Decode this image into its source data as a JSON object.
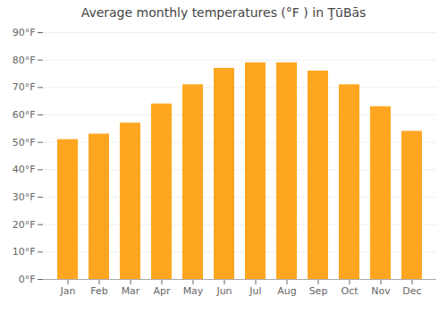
{
  "chart_data": {
    "type": "bar",
    "title": "Average monthly temperatures (°F ) in ŢūBās",
    "categories": [
      "Jan",
      "Feb",
      "Mar",
      "Apr",
      "May",
      "Jun",
      "Jul",
      "Aug",
      "Sep",
      "Oct",
      "Nov",
      "Dec"
    ],
    "values": [
      51,
      53,
      57,
      64,
      71,
      77,
      79,
      79,
      76,
      71,
      63,
      54
    ],
    "color": "#FFA620",
    "ylim": [
      0,
      90
    ],
    "yticks": [
      {
        "value": 0,
        "label": "0°F"
      },
      {
        "value": 10,
        "label": "10°F"
      },
      {
        "value": 20,
        "label": "20°F"
      },
      {
        "value": 30,
        "label": "30°F"
      },
      {
        "value": 40,
        "label": "40°F"
      },
      {
        "value": 50,
        "label": "50°F"
      },
      {
        "value": 60,
        "label": "60°F"
      },
      {
        "value": 70,
        "label": "70°F"
      },
      {
        "value": 80,
        "label": "80°F"
      },
      {
        "value": 90,
        "label": "90°F"
      }
    ],
    "grid": true
  }
}
